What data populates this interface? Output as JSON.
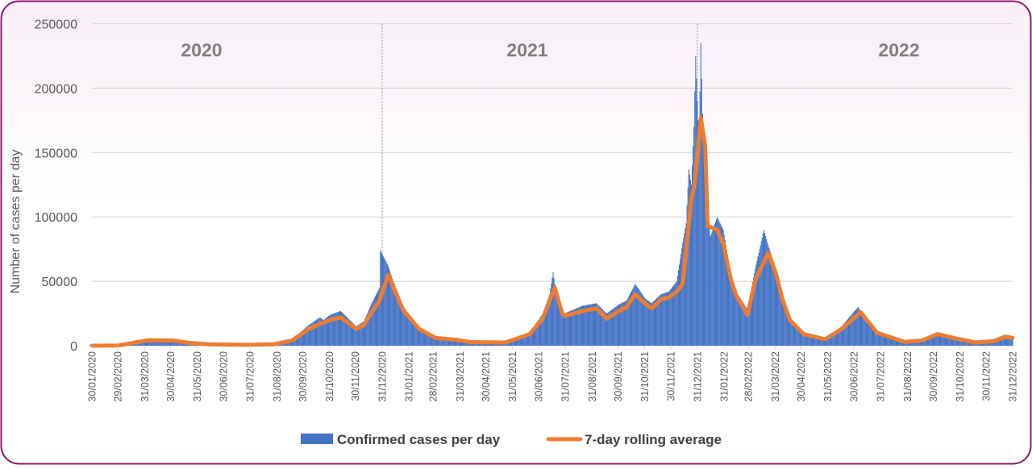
{
  "chart_data": {
    "type": "bar+line",
    "ylabel": "Number of cases per day",
    "xlabel": "",
    "ylim": [
      0,
      250000
    ],
    "y_ticks": [
      "0",
      "50000",
      "100000",
      "150000",
      "200000",
      "250000"
    ],
    "grid": true,
    "legend_placement": "bottom",
    "year_labels": [
      "2020",
      "2021",
      "2022"
    ],
    "year_dividers": [
      "31/12/2020",
      "31/12/2021"
    ],
    "x_ticks": [
      "30/01/2020",
      "29/02/2020",
      "31/03/2020",
      "30/04/2020",
      "31/05/2020",
      "30/06/2020",
      "31/07/2020",
      "31/08/2020",
      "30/09/2020",
      "31/10/2020",
      "30/11/2020",
      "31/12/2020",
      "31/01/2021",
      "28/02/2021",
      "31/03/2021",
      "30/04/2021",
      "31/05/2021",
      "30/06/2021",
      "31/07/2021",
      "31/08/2021",
      "30/09/2021",
      "31/10/2021",
      "30/11/2021",
      "31/12/2021",
      "31/01/2022",
      "28/02/2022",
      "31/03/2022",
      "30/04/2022",
      "31/05/2022",
      "30/06/2022",
      "31/07/2022",
      "31/08/2022",
      "30/09/2022",
      "31/10/2022",
      "30/11/2022",
      "31/12/2022"
    ],
    "series": [
      {
        "name": "Confirmed cases per day",
        "type": "bar",
        "color": "#4472c4",
        "points": [
          [
            "30/01/2020",
            0
          ],
          [
            "01/03/2020",
            300
          ],
          [
            "20/03/2020",
            3000
          ],
          [
            "04/04/2020",
            5000
          ],
          [
            "03/05/2020",
            4500
          ],
          [
            "22/05/2020",
            2500
          ],
          [
            "15/06/2020",
            1200
          ],
          [
            "31/07/2020",
            900
          ],
          [
            "28/08/2020",
            1500
          ],
          [
            "18/09/2020",
            5000
          ],
          [
            "07/10/2020",
            16000
          ],
          [
            "20/10/2020",
            22000
          ],
          [
            "24/10/2020",
            20000
          ],
          [
            "01/11/2020",
            24000
          ],
          [
            "13/11/2020",
            27000
          ],
          [
            "01/12/2020",
            15000
          ],
          [
            "10/12/2020",
            19000
          ],
          [
            "19/12/2020",
            33000
          ],
          [
            "28/12/2020",
            45000
          ],
          [
            "29/12/2020",
            74000
          ],
          [
            "01/01/2021",
            70000
          ],
          [
            "07/01/2021",
            62000
          ],
          [
            "13/01/2021",
            50000
          ],
          [
            "25/01/2021",
            30000
          ],
          [
            "12/02/2021",
            14000
          ],
          [
            "03/03/2021",
            7000
          ],
          [
            "28/03/2021",
            5000
          ],
          [
            "12/04/2021",
            3200
          ],
          [
            "23/05/2021",
            2800
          ],
          [
            "20/06/2021",
            10000
          ],
          [
            "05/07/2021",
            25000
          ],
          [
            "13/07/2021",
            40000
          ],
          [
            "17/07/2021",
            57000
          ],
          [
            "19/07/2021",
            48000
          ],
          [
            "27/07/2021",
            28000
          ],
          [
            "30/07/2021",
            25000
          ],
          [
            "20/08/2021",
            31000
          ],
          [
            "05/09/2021",
            33000
          ],
          [
            "17/09/2021",
            25000
          ],
          [
            "01/10/2021",
            32000
          ],
          [
            "10/10/2021",
            35000
          ],
          [
            "20/10/2021",
            48000
          ],
          [
            "31/10/2021",
            37000
          ],
          [
            "08/11/2021",
            33000
          ],
          [
            "19/11/2021",
            40000
          ],
          [
            "28/11/2021",
            42000
          ],
          [
            "07/12/2021",
            50000
          ],
          [
            "14/12/2021",
            80000
          ],
          [
            "18/12/2021",
            95000
          ],
          [
            "21/12/2021",
            137000
          ],
          [
            "24/12/2021",
            125000
          ],
          [
            "27/12/2021",
            170000
          ],
          [
            "29/12/2021",
            225000
          ],
          [
            "31/12/2021",
            190000
          ],
          [
            "02/01/2022",
            160000
          ],
          [
            "04/01/2022",
            235000
          ],
          [
            "06/01/2022",
            180000
          ],
          [
            "09/01/2022",
            140000
          ],
          [
            "12/01/2022",
            110000
          ],
          [
            "15/01/2022",
            85000
          ],
          [
            "23/01/2022",
            100000
          ],
          [
            "30/01/2022",
            90000
          ],
          [
            "08/02/2022",
            55000
          ],
          [
            "14/02/2022",
            42000
          ],
          [
            "27/02/2022",
            28000
          ],
          [
            "08/03/2022",
            60000
          ],
          [
            "18/03/2022",
            90000
          ],
          [
            "23/03/2022",
            78000
          ],
          [
            "01/04/2022",
            60000
          ],
          [
            "08/04/2022",
            40000
          ],
          [
            "17/04/2022",
            22000
          ],
          [
            "03/05/2022",
            10000
          ],
          [
            "28/05/2022",
            5500
          ],
          [
            "16/06/2022",
            15000
          ],
          [
            "05/07/2022",
            30000
          ],
          [
            "08/07/2022",
            27000
          ],
          [
            "27/07/2022",
            11000
          ],
          [
            "28/08/2022",
            3500
          ],
          [
            "17/09/2022",
            4500
          ],
          [
            "05/10/2022",
            10000
          ],
          [
            "24/10/2022",
            7000
          ],
          [
            "18/11/2022",
            3000
          ],
          [
            "09/12/2022",
            4000
          ],
          [
            "22/12/2022",
            8000
          ],
          [
            "31/12/2022",
            7000
          ]
        ]
      },
      {
        "name": "7-day rolling average",
        "type": "line",
        "color": "#ed7d31",
        "points": [
          [
            "30/01/2020",
            0
          ],
          [
            "01/03/2020",
            200
          ],
          [
            "20/03/2020",
            2500
          ],
          [
            "04/04/2020",
            4200
          ],
          [
            "03/05/2020",
            4000
          ],
          [
            "22/05/2020",
            2200
          ],
          [
            "15/06/2020",
            1000
          ],
          [
            "31/07/2020",
            700
          ],
          [
            "28/08/2020",
            1200
          ],
          [
            "18/09/2020",
            4000
          ],
          [
            "07/10/2020",
            13000
          ],
          [
            "24/10/2020",
            18000
          ],
          [
            "01/11/2020",
            20000
          ],
          [
            "13/11/2020",
            22000
          ],
          [
            "01/12/2020",
            13000
          ],
          [
            "10/12/2020",
            16000
          ],
          [
            "19/12/2020",
            26000
          ],
          [
            "28/12/2020",
            35000
          ],
          [
            "07/01/2021",
            55000
          ],
          [
            "13/01/2021",
            45000
          ],
          [
            "25/01/2021",
            27000
          ],
          [
            "12/02/2021",
            13000
          ],
          [
            "03/03/2021",
            6000
          ],
          [
            "28/03/2021",
            4500
          ],
          [
            "12/04/2021",
            2800
          ],
          [
            "23/05/2021",
            2500
          ],
          [
            "20/06/2021",
            9000
          ],
          [
            "05/07/2021",
            21000
          ],
          [
            "13/07/2021",
            35000
          ],
          [
            "19/07/2021",
            45000
          ],
          [
            "27/07/2021",
            26000
          ],
          [
            "30/07/2021",
            23000
          ],
          [
            "20/08/2021",
            27000
          ],
          [
            "05/09/2021",
            29000
          ],
          [
            "17/09/2021",
            21000
          ],
          [
            "01/10/2021",
            27000
          ],
          [
            "10/10/2021",
            30000
          ],
          [
            "20/10/2021",
            40000
          ],
          [
            "31/10/2021",
            33000
          ],
          [
            "08/11/2021",
            29000
          ],
          [
            "19/11/2021",
            36000
          ],
          [
            "28/11/2021",
            37500
          ],
          [
            "07/12/2021",
            42000
          ],
          [
            "14/12/2021",
            48000
          ],
          [
            "24/12/2021",
            114000
          ],
          [
            "28/12/2021",
            126000
          ],
          [
            "04/01/2022",
            177000
          ],
          [
            "09/01/2022",
            155000
          ],
          [
            "12/01/2022",
            93000
          ],
          [
            "23/01/2022",
            90000
          ],
          [
            "30/01/2022",
            79000
          ],
          [
            "08/02/2022",
            51000
          ],
          [
            "14/02/2022",
            39000
          ],
          [
            "27/02/2022",
            24000
          ],
          [
            "08/03/2022",
            51000
          ],
          [
            "23/03/2022",
            72000
          ],
          [
            "01/04/2022",
            56000
          ],
          [
            "08/04/2022",
            37000
          ],
          [
            "17/04/2022",
            20000
          ],
          [
            "03/05/2022",
            9000
          ],
          [
            "28/05/2022",
            5000
          ],
          [
            "16/06/2022",
            13000
          ],
          [
            "08/07/2022",
            26000
          ],
          [
            "27/07/2022",
            10000
          ],
          [
            "28/08/2022",
            3000
          ],
          [
            "17/09/2022",
            4000
          ],
          [
            "05/10/2022",
            9000
          ],
          [
            "24/10/2022",
            6000
          ],
          [
            "18/11/2022",
            2500
          ],
          [
            "09/12/2022",
            3500
          ],
          [
            "22/12/2022",
            7000
          ],
          [
            "31/12/2022",
            6000
          ]
        ]
      }
    ]
  }
}
